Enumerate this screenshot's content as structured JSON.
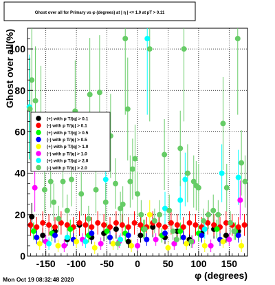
{
  "chart_data": {
    "type": "scatter",
    "title": "Ghost over all for Primary vs φ (degrees) at | η | <= 1.0 at pT > 0.11",
    "xlabel": "φ (degrees)",
    "ylabel": "Ghost over all(%)",
    "xlim": [
      -180,
      180
    ],
    "ylim": [
      0,
      110
    ],
    "xticks": [
      "-150",
      "-100",
      "-50",
      "0",
      "50",
      "100",
      "150"
    ],
    "yticks": [
      "0",
      "20",
      "40",
      "60",
      "80",
      "100"
    ],
    "grid": true,
    "legend_position": "center-left",
    "series": [
      {
        "name": "(+) with p T/|q| > 0.1",
        "color": "#000000",
        "x": [
          -173,
          -155,
          -135,
          -115,
          -95,
          -75,
          -55,
          -35,
          -15,
          5,
          25,
          45,
          65,
          85,
          105,
          125,
          145,
          165
        ],
        "y": [
          19,
          10,
          12,
          8,
          15,
          9,
          11,
          13,
          7,
          10,
          14,
          9,
          12,
          8,
          11,
          13,
          10,
          12
        ]
      },
      {
        "name": "(-) with p T/|q| > 0.1",
        "color": "#ff0000",
        "x": [
          -175,
          -165,
          -155,
          -145,
          -135,
          -125,
          -115,
          -105,
          -95,
          -85,
          -75,
          -65,
          -55,
          -45,
          -35,
          -25,
          -15,
          -5,
          5,
          15,
          25,
          35,
          45,
          55,
          65,
          75,
          85,
          95,
          105,
          115,
          125,
          135,
          145,
          155,
          165,
          175
        ],
        "y": [
          15,
          14,
          16,
          15,
          14,
          16,
          15,
          14,
          16,
          15,
          14,
          16,
          15,
          14,
          16,
          15,
          14,
          16,
          15,
          14,
          16,
          15,
          14,
          16,
          15,
          14,
          16,
          15,
          14,
          16,
          15,
          14,
          16,
          15,
          14,
          15
        ]
      },
      {
        "name": "(+) with p T/|q| > 0.5",
        "color": "#00ff00",
        "x": [
          -170,
          -140,
          -110,
          -80,
          -50,
          -20,
          10,
          40,
          70,
          100,
          130,
          160
        ],
        "y": [
          12,
          11,
          13,
          10,
          12,
          11,
          13,
          10,
          12,
          11,
          13,
          12
        ]
      },
      {
        "name": "(-) with p T/|q| > 0.5",
        "color": "#0000ff",
        "x": [
          -165,
          -135,
          -105,
          -75,
          -45,
          -15,
          15,
          45,
          75,
          105,
          135,
          165
        ],
        "y": [
          9,
          10,
          8,
          11,
          9,
          10,
          8,
          11,
          9,
          10,
          8,
          10
        ]
      },
      {
        "name": "(+) with p T/|q| > 1.0",
        "color": "#ffff00",
        "x": [
          -160,
          -130,
          -100,
          -70,
          -40,
          -10,
          20,
          50,
          80,
          110,
          140,
          170
        ],
        "y": [
          6,
          5,
          7,
          4,
          6,
          5,
          20,
          4,
          6,
          5,
          7,
          5
        ]
      },
      {
        "name": "(-) with p T/|q| > 1.0",
        "color": "#ff00ff",
        "x": [
          -168,
          -150,
          -120,
          -90,
          -60,
          -30,
          0,
          30,
          60,
          90,
          120,
          150,
          168
        ],
        "y": [
          33,
          7,
          5,
          8,
          6,
          7,
          5,
          8,
          6,
          7,
          5,
          8,
          27
        ]
      },
      {
        "name": "(+) with p T/|q| > 2.0",
        "color": "#00ffff",
        "x": [
          -177,
          -145,
          -115,
          -85,
          -52,
          -28,
          16,
          45,
          70,
          78,
          110,
          138,
          165
        ],
        "y": [
          72,
          6,
          9,
          7,
          37,
          8,
          105,
          23,
          27,
          37,
          13,
          40,
          38
        ]
      },
      {
        "name": "(-) with p T/|q| > 2.0",
        "color": "#66cc66",
        "x": [
          -176,
          -173,
          -167,
          -158,
          -152,
          -142,
          -137,
          -129,
          -122,
          -115,
          -108,
          -102,
          -92,
          -80,
          -78,
          -68,
          -62,
          -52,
          -44,
          -36,
          -32,
          -28,
          -24,
          -20,
          -16,
          -12,
          -8,
          -4,
          0,
          6,
          12,
          20,
          28,
          36,
          44,
          52,
          58,
          64,
          70,
          76,
          82,
          88,
          92,
          96,
          100,
          108,
          116,
          124,
          132,
          140,
          146,
          152,
          158,
          164,
          170,
          176
        ],
        "y": [
          71,
          85,
          75,
          68,
          32,
          36,
          26,
          18,
          36,
          22,
          37,
          70,
          30,
          18,
          78,
          32,
          79,
          26,
          58,
          35,
          6,
          23,
          25,
          105,
          71,
          36,
          42,
          47,
          30,
          20,
          13,
          100,
          17,
          20,
          49,
          22,
          12,
          8,
          52,
          100,
          40,
          7,
          36,
          34,
          33,
          17,
          20,
          22,
          20,
          64,
          33,
          16,
          12,
          105,
          45,
          36
        ]
      }
    ]
  },
  "footer": {
    "timestamp": "Mon Oct 19 08:32:48 2020"
  }
}
